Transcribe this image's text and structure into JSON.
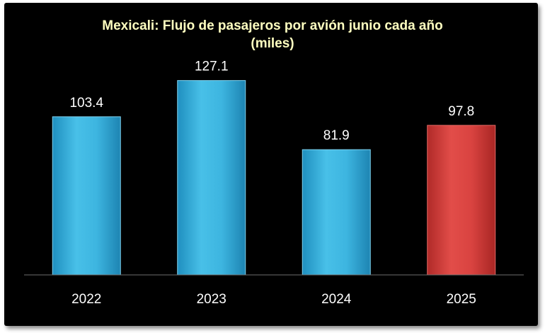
{
  "chart_data": {
    "type": "bar",
    "title": "Mexicali: Flujo de pasajeros por avión junio cada año",
    "subtitle": "(miles)",
    "categories": [
      "2022",
      "2023",
      "2024",
      "2025"
    ],
    "values": [
      103.4,
      127.1,
      81.9,
      97.8
    ],
    "value_labels": [
      "103.4",
      "127.1",
      "81.9",
      "97.8"
    ],
    "ylim": [
      0,
      145
    ],
    "grid": false,
    "legend": "none",
    "colors": {
      "background": "#000000",
      "title": "#ffffc0",
      "text": "#ffffff",
      "bar_default": "#3fb6e0",
      "bar_highlight": "#d9423f",
      "axis": "#6e6e6e"
    },
    "highlight_index": 3
  }
}
